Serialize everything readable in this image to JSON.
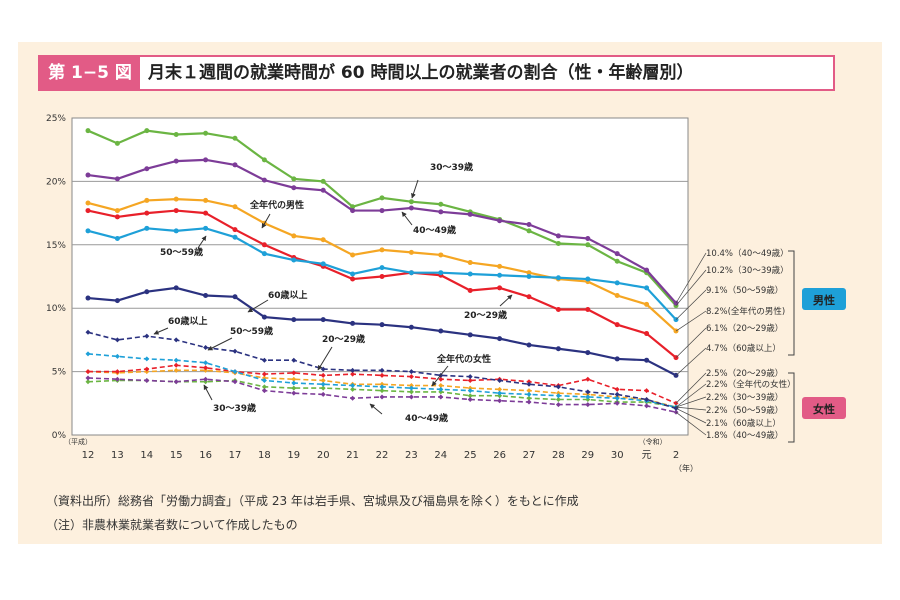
{
  "figure": {
    "badge": "第 1−5 図",
    "title": "月末１週間の就業時間が 60 時間以上の就業者の割合（性・年齢層別）",
    "source": "（資料出所）総務省「労働力調査」（平成 23 年は岩手県、宮城県及び福島県を除く）をもとに作成",
    "note": "（注）非農林業就業者数について作成したもの"
  },
  "colors": {
    "total_male": "#f5a623",
    "age_20_29": "#e8202a",
    "age_30_39": "#6bb543",
    "age_40_49": "#7d3c98",
    "age_50_59": "#1ea0d8",
    "age_60_plus": "#2b3280",
    "male_badge": "#1ea0d8",
    "female_badge": "#e25b86",
    "gridline": "#999999"
  },
  "chart_data": {
    "type": "line",
    "categories": [
      "12",
      "13",
      "14",
      "15",
      "16",
      "17",
      "18",
      "19",
      "20",
      "21",
      "22",
      "23",
      "24",
      "25",
      "26",
      "27",
      "28",
      "29",
      "30",
      "元",
      "2"
    ],
    "era_labels": {
      "start": "（平成）",
      "reiwa": "（令和）",
      "unit": "（年）"
    },
    "y_ticks": [
      "0%",
      "5%",
      "10%",
      "15%",
      "20%",
      "25%"
    ],
    "ylim": [
      0,
      25
    ],
    "series": [
      {
        "name": "全年代の男性",
        "sex": "male",
        "color_key": "total_male",
        "dashed": false,
        "values": [
          18.3,
          17.7,
          18.5,
          18.6,
          18.5,
          18.0,
          16.7,
          15.7,
          15.4,
          14.2,
          14.6,
          14.4,
          14.2,
          13.6,
          13.3,
          12.8,
          12.3,
          12.1,
          11.0,
          10.3,
          8.2
        ],
        "end_label": "8.2%(全年代の男性)"
      },
      {
        "name": "20〜29歳",
        "sex": "male",
        "color_key": "age_20_29",
        "dashed": false,
        "values": [
          17.7,
          17.2,
          17.5,
          17.7,
          17.5,
          16.2,
          15.0,
          14.0,
          13.3,
          12.3,
          12.5,
          12.8,
          12.6,
          11.4,
          11.6,
          10.9,
          9.9,
          9.9,
          8.7,
          8.0,
          6.1
        ],
        "end_label": "6.1%（20〜29歳）"
      },
      {
        "name": "30〜39歳",
        "sex": "male",
        "color_key": "age_30_39",
        "dashed": false,
        "values": [
          24.0,
          23.0,
          24.0,
          23.7,
          23.8,
          23.4,
          21.7,
          20.2,
          20.0,
          18.0,
          18.7,
          18.4,
          18.2,
          17.6,
          17.0,
          16.1,
          15.1,
          15.0,
          13.7,
          12.8,
          10.2
        ],
        "end_label": "10.2%（30〜39歳）"
      },
      {
        "name": "40〜49歳",
        "sex": "male",
        "color_key": "age_40_49",
        "dashed": false,
        "values": [
          20.5,
          20.2,
          21.0,
          21.6,
          21.7,
          21.3,
          20.1,
          19.5,
          19.3,
          17.7,
          17.7,
          17.9,
          17.6,
          17.4,
          16.9,
          16.6,
          15.7,
          15.5,
          14.3,
          13.0,
          10.4
        ],
        "end_label": "10.4%（40〜49歳）"
      },
      {
        "name": "50〜59歳",
        "sex": "male",
        "color_key": "age_50_59",
        "dashed": false,
        "values": [
          16.1,
          15.5,
          16.3,
          16.1,
          16.3,
          15.6,
          14.3,
          13.8,
          13.5,
          12.7,
          13.2,
          12.8,
          12.8,
          12.7,
          12.6,
          12.5,
          12.4,
          12.3,
          12.0,
          11.6,
          9.1
        ],
        "end_label": "9.1%（50〜59歳）"
      },
      {
        "name": "60歳以上",
        "sex": "male",
        "color_key": "age_60_plus",
        "dashed": false,
        "values": [
          10.8,
          10.6,
          11.3,
          11.6,
          11.0,
          10.9,
          9.3,
          9.1,
          9.1,
          8.8,
          8.7,
          8.5,
          8.2,
          7.9,
          7.6,
          7.1,
          6.8,
          6.5,
          6.0,
          5.9,
          4.7
        ],
        "end_label": "4.7%（60歳以上）"
      },
      {
        "name": "全年代の女性",
        "sex": "female",
        "color_key": "total_male",
        "dashed": true,
        "values": [
          5.0,
          4.9,
          5.0,
          5.1,
          5.1,
          4.9,
          4.5,
          4.4,
          4.3,
          4.0,
          4.0,
          3.9,
          3.9,
          3.7,
          3.6,
          3.5,
          3.3,
          3.2,
          3.0,
          2.8,
          2.2
        ],
        "end_label": "2.2%（全年代の女性）"
      },
      {
        "name": "20〜29歳",
        "sex": "female",
        "color_key": "age_20_29",
        "dashed": true,
        "values": [
          5.0,
          5.0,
          5.2,
          5.5,
          5.3,
          5.0,
          4.8,
          4.9,
          4.7,
          4.8,
          4.7,
          4.6,
          4.4,
          4.3,
          4.4,
          4.2,
          3.9,
          4.4,
          3.6,
          3.5,
          2.5
        ],
        "end_label": "2.5%（20〜29歳）"
      },
      {
        "name": "30〜39歳",
        "sex": "female",
        "color_key": "age_30_39",
        "dashed": true,
        "values": [
          4.2,
          4.3,
          4.3,
          4.2,
          4.2,
          4.3,
          3.8,
          3.7,
          3.7,
          3.6,
          3.5,
          3.4,
          3.4,
          3.1,
          3.1,
          2.9,
          2.8,
          2.8,
          2.6,
          2.6,
          2.2
        ],
        "end_label": "2.2%（30〜39歳）"
      },
      {
        "name": "40〜49歳",
        "sex": "female",
        "color_key": "age_40_49",
        "dashed": true,
        "values": [
          4.5,
          4.4,
          4.3,
          4.2,
          4.4,
          4.2,
          3.5,
          3.3,
          3.2,
          2.9,
          3.0,
          3.0,
          3.0,
          2.8,
          2.7,
          2.6,
          2.4,
          2.4,
          2.5,
          2.3,
          1.8
        ],
        "end_label": "1.8%（40〜49歳）"
      },
      {
        "name": "50〜59歳",
        "sex": "female",
        "color_key": "age_50_59",
        "dashed": true,
        "values": [
          6.4,
          6.2,
          6.0,
          5.9,
          5.7,
          5.0,
          4.3,
          4.1,
          4.0,
          3.9,
          3.8,
          3.7,
          3.6,
          3.5,
          3.3,
          3.2,
          3.1,
          3.0,
          2.9,
          2.7,
          2.2
        ],
        "end_label": "2.2%（50〜59歳）"
      },
      {
        "name": "60歳以上",
        "sex": "female",
        "color_key": "age_60_plus",
        "dashed": true,
        "values": [
          8.1,
          7.5,
          7.8,
          7.5,
          6.9,
          6.6,
          5.9,
          5.9,
          5.2,
          5.1,
          5.1,
          5.0,
          4.7,
          4.6,
          4.3,
          4.0,
          3.8,
          3.4,
          3.2,
          2.8,
          2.1
        ],
        "end_label": "2.1%（60歳以上）"
      }
    ],
    "group_labels": {
      "male": "男性",
      "female": "女性"
    },
    "annotations": [
      {
        "text": "30〜39歳"
      },
      {
        "text": "全年代の男性"
      },
      {
        "text": "40〜49歳"
      },
      {
        "text": "50〜59歳"
      },
      {
        "text": "60歳以上"
      },
      {
        "text": "20〜29歳"
      },
      {
        "text": "60歳以上"
      },
      {
        "text": "50〜59歳"
      },
      {
        "text": "20〜29歳"
      },
      {
        "text": "全年代の女性"
      },
      {
        "text": "30〜39歳"
      },
      {
        "text": "40〜49歳"
      }
    ]
  }
}
